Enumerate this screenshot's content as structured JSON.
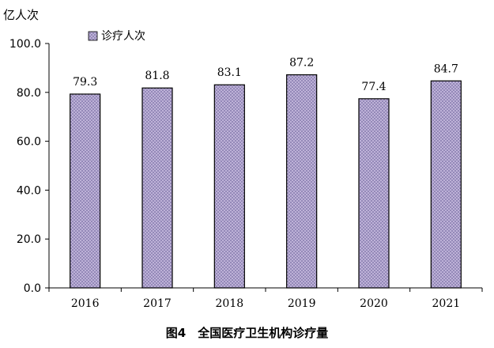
{
  "chart_data": {
    "type": "bar",
    "ylabel": "亿人次",
    "categories": [
      "2016",
      "2017",
      "2018",
      "2019",
      "2020",
      "2021"
    ],
    "series": [
      {
        "name": "诊疗人次",
        "values": [
          79.3,
          81.8,
          83.1,
          87.2,
          77.4,
          84.7
        ]
      }
    ],
    "data_labels": [
      "79.3",
      "81.8",
      "83.1",
      "87.2",
      "77.4",
      "84.7"
    ],
    "ylim": [
      0,
      100
    ],
    "yticks": [
      "0.0",
      "20.0",
      "40.0",
      "60.0",
      "80.0",
      "100.0"
    ],
    "grid": false,
    "legend_position": "top-left",
    "bar_fill_color": "#c9bce0",
    "bar_pattern_color": "#8a7fb0",
    "bar_border_color": "#000000"
  },
  "caption": "图4　全国医疗卫生机构诊疗量"
}
